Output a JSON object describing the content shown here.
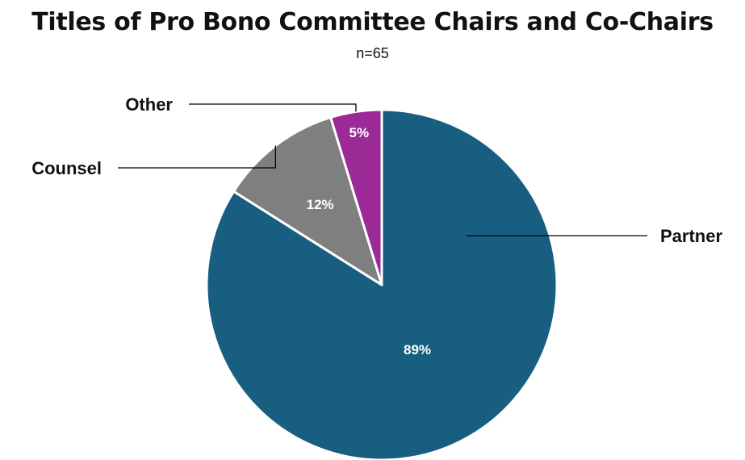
{
  "chart_data": {
    "type": "pie",
    "title": "Titles of Pro Bono Committee Chairs and Co-Chairs",
    "subtitle": "n=65",
    "slices": [
      {
        "label": "Partner",
        "value": 89,
        "value_label": "89%",
        "color": "#185E80"
      },
      {
        "label": "Counsel",
        "value": 12,
        "value_label": "12%",
        "color": "#7F7F7F"
      },
      {
        "label": "Other",
        "value": 5,
        "value_label": "5%",
        "color": "#9B2A96"
      }
    ],
    "start_angle": "12 o'clock",
    "direction": "clockwise",
    "legend": "none (leader-line labels)"
  }
}
